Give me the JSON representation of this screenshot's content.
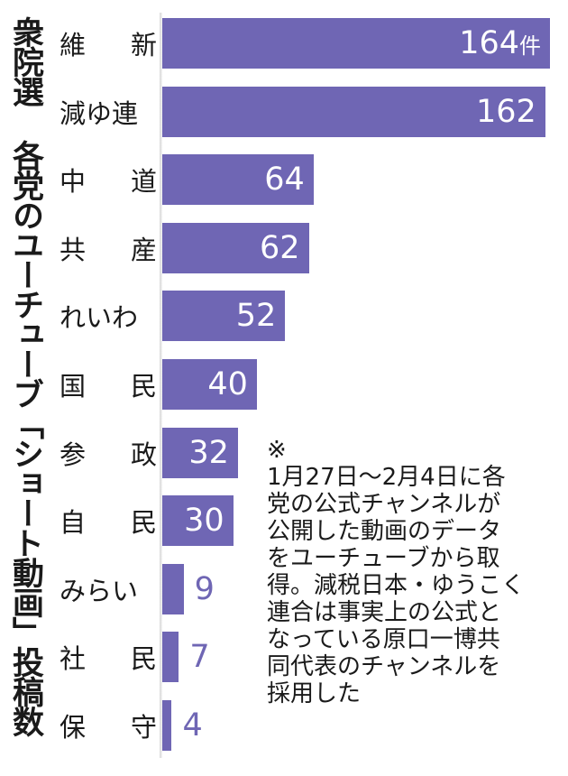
{
  "title": "衆院選 各党のユーチューブ「ショート動画」投稿数",
  "unit": "件",
  "bar_color": "#6f66b4",
  "note": {
    "mark": "※",
    "lines": [
      "1月27日～2月4日に各",
      "党の公式チャンネルが",
      "公開した動画のデータ",
      "をユーチューブから取",
      "得。減税日本・ゆうこく",
      "連合は事実上の公式と",
      "なっている原口一博共",
      "同代表のチャンネルを",
      "採用した"
    ]
  },
  "chart_data": {
    "type": "bar",
    "orientation": "horizontal",
    "title": "衆院選 各党のユーチューブ「ショート動画」投稿数",
    "xlabel": "",
    "ylabel": "",
    "unit": "件",
    "categories": [
      "維新",
      "減ゆ連",
      "中道",
      "共産",
      "れいわ",
      "国民",
      "参政",
      "自民",
      "みらい",
      "社民",
      "保守"
    ],
    "values": [
      164,
      162,
      64,
      62,
      52,
      40,
      32,
      30,
      9,
      7,
      4
    ],
    "display_labels": [
      "164件",
      "162",
      "64",
      "62",
      "52",
      "40",
      "32",
      "30",
      "9",
      "7",
      "4"
    ],
    "grid": false,
    "legend": "none",
    "xlim": [
      0,
      164
    ],
    "annotation": "※1月27日～2月4日に各党の公式チャンネルが公開した動画のデータをユーチューブから取得。減税日本・ゆうこく連合は事実上の公式となっている原口一博共同代表のチャンネルを採用した"
  }
}
